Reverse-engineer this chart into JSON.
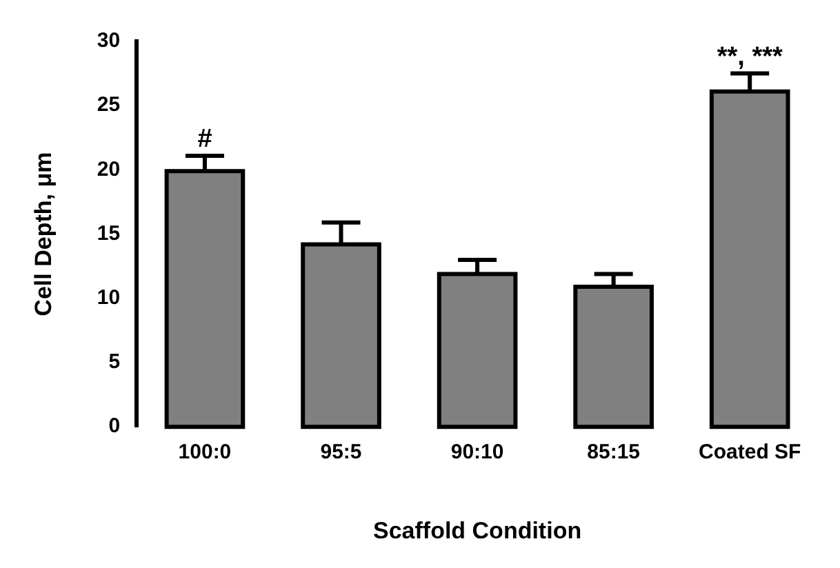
{
  "chart_data": {
    "type": "bar",
    "xlabel": "Scaffold Condition",
    "ylabel": "Cell Depth, μm",
    "categories": [
      "100:0",
      "95:5",
      "90:10",
      "85:15",
      "Coated SF"
    ],
    "values": [
      19.9,
      14.2,
      11.9,
      10.9,
      26.1
    ],
    "errors": [
      [
        19.9,
        21.1
      ],
      [
        14.2,
        15.9
      ],
      [
        11.9,
        13.0
      ],
      [
        10.9,
        11.9
      ],
      [
        26.1,
        27.5
      ]
    ],
    "color": "#808080",
    "ylim": [
      0,
      30
    ],
    "yticks": [
      0,
      5,
      10,
      15,
      20,
      25,
      30
    ],
    "grid": false,
    "legend": false,
    "annotations": [
      {
        "text": "#",
        "x": "100:0",
        "y": 21.1
      },
      {
        "text": "**, ***",
        "x": "Coated SF",
        "y": 27.5
      }
    ]
  }
}
